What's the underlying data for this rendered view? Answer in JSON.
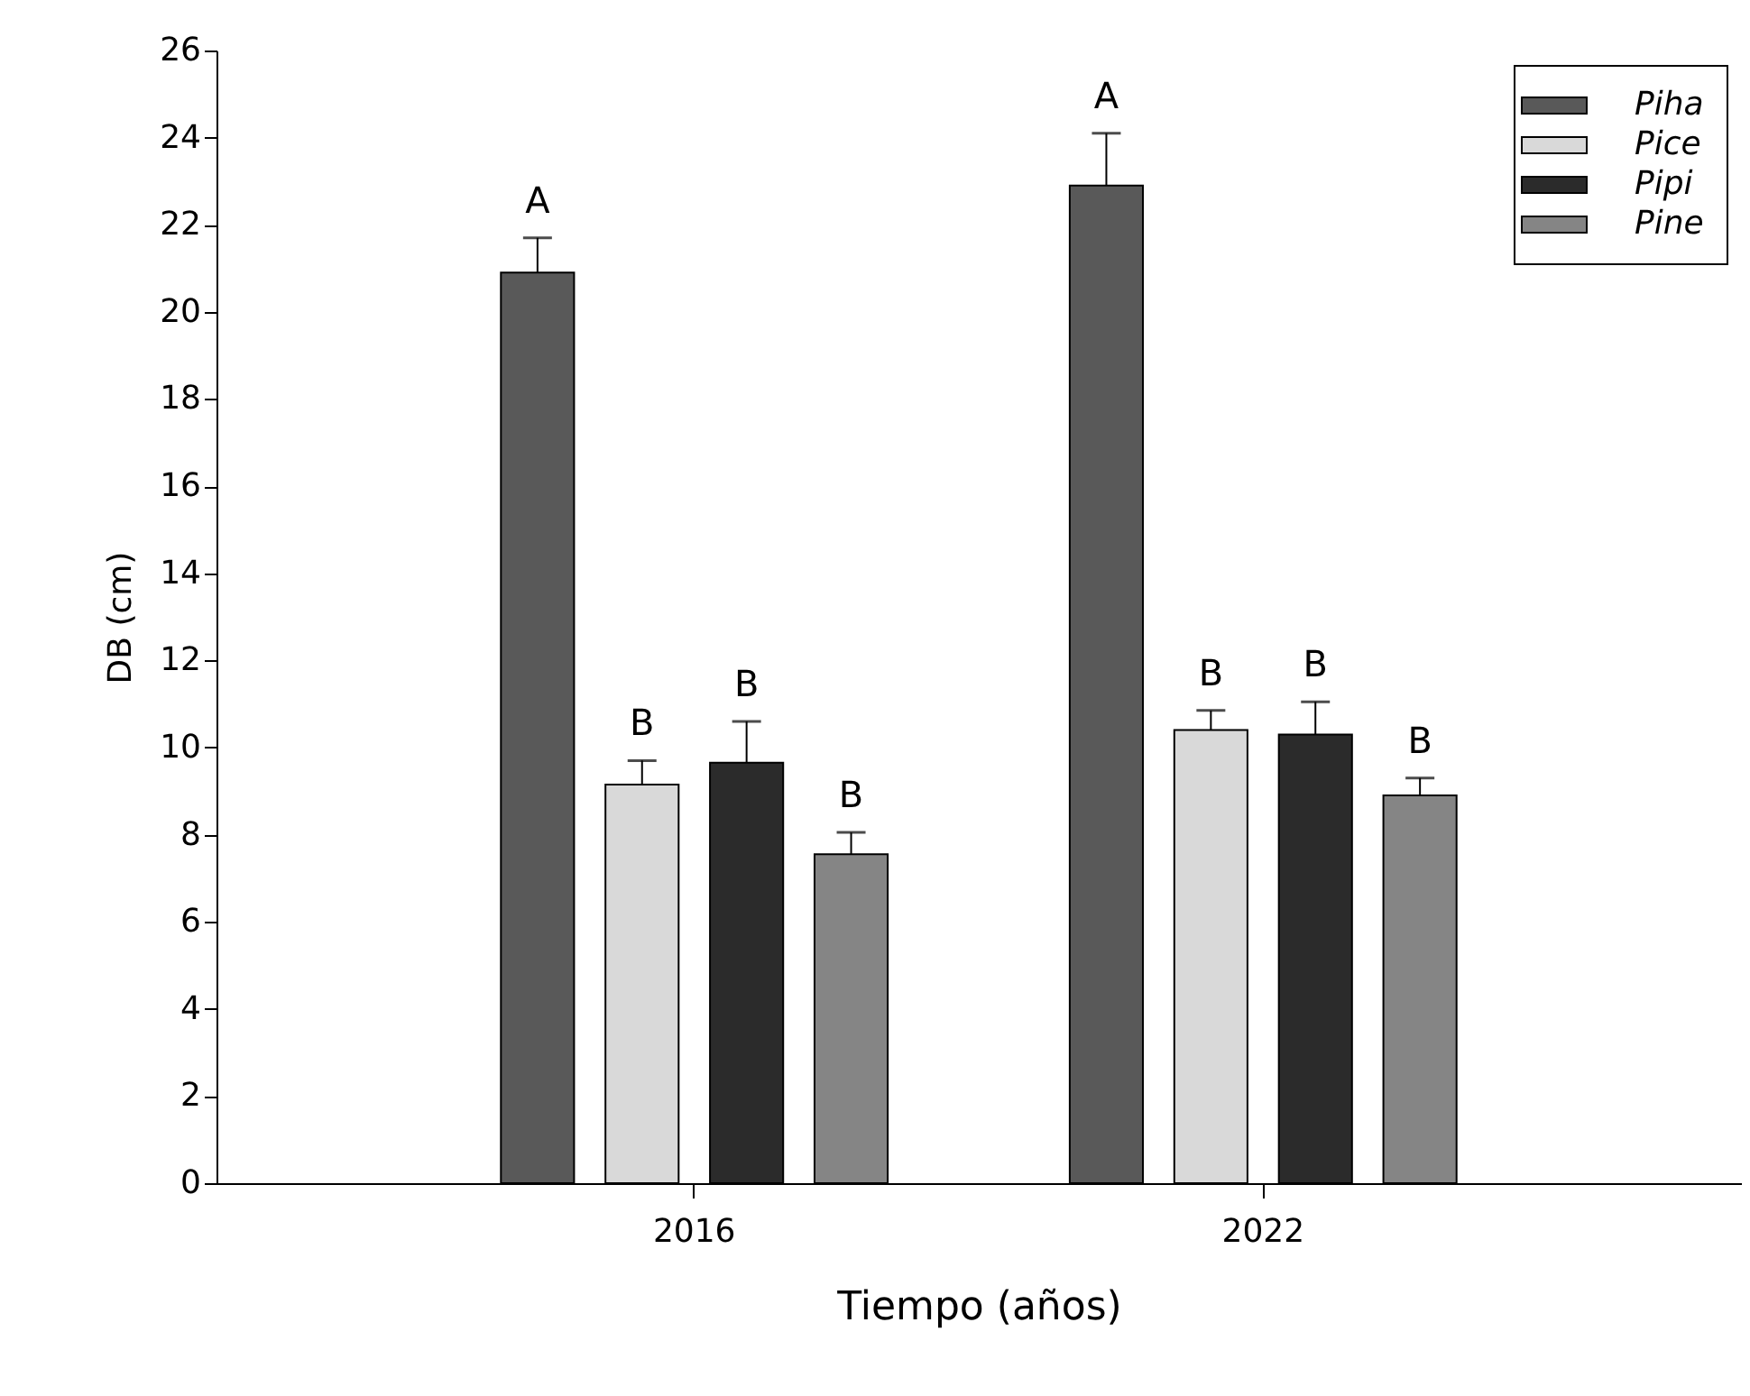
{
  "chart_data": {
    "type": "bar",
    "xlabel": "Tiempo (años)",
    "ylabel": "DB (cm)",
    "categories": [
      "2016",
      "2022"
    ],
    "series": [
      {
        "name": "Piha",
        "color": "#595959",
        "values": [
          20.9,
          22.9
        ],
        "errors": [
          [
            20.9,
            21.7
          ],
          [
            22.9,
            24.1
          ]
        ],
        "value_labels": [
          "A",
          "A"
        ]
      },
      {
        "name": "Pice",
        "color": "#d9d9d9",
        "values": [
          9.15,
          10.4
        ],
        "errors": [
          [
            9.15,
            9.7
          ],
          [
            10.4,
            10.85
          ]
        ],
        "value_labels": [
          "B",
          "B"
        ]
      },
      {
        "name": "Pipi",
        "color": "#2b2b2b",
        "values": [
          9.65,
          10.3
        ],
        "errors": [
          [
            9.65,
            10.6
          ],
          [
            10.3,
            11.05
          ]
        ],
        "value_labels": [
          "B",
          "B"
        ]
      },
      {
        "name": "Pine",
        "color": "#858585",
        "values": [
          7.55,
          8.9
        ],
        "errors": [
          [
            7.55,
            8.05
          ],
          [
            8.9,
            9.3
          ]
        ],
        "value_labels": [
          "B",
          "B"
        ]
      }
    ],
    "ylim": [
      0,
      26
    ],
    "yticks": [
      0,
      2,
      4,
      6,
      8,
      10,
      12,
      14,
      16,
      18,
      20,
      22,
      24,
      26
    ],
    "grid": false,
    "legend": "top right"
  }
}
